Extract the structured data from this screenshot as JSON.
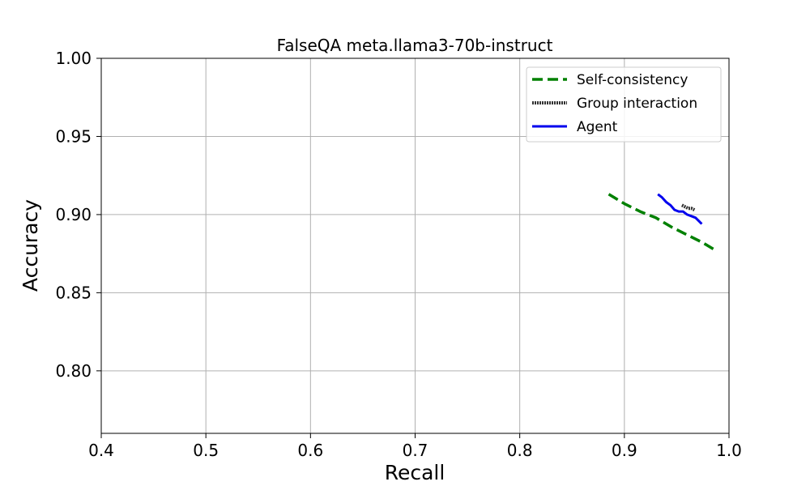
{
  "chart_data": {
    "type": "line",
    "title": "FalseQA meta.llama3-70b-instruct",
    "xlabel": "Recall",
    "ylabel": "Accuracy",
    "xlim": [
      0.4,
      1.0
    ],
    "ylim": [
      0.76,
      1.0
    ],
    "xticks": [
      0.4,
      0.5,
      0.6,
      0.7,
      0.8,
      0.9,
      1.0
    ],
    "xtick_labels": [
      "0.4",
      "0.5",
      "0.6",
      "0.7",
      "0.8",
      "0.9",
      "1.0"
    ],
    "yticks": [
      0.8,
      0.85,
      0.9,
      0.95,
      1.0
    ],
    "ytick_labels": [
      "0.80",
      "0.85",
      "0.90",
      "0.95",
      "1.00"
    ],
    "grid": true,
    "legend_position": "top-right",
    "series": [
      {
        "name": "Self-consistency",
        "color": "#008000",
        "style": "dashed",
        "x": [
          0.885,
          0.9,
          0.915,
          0.93,
          0.945,
          0.96,
          0.975,
          0.985
        ],
        "y": [
          0.913,
          0.907,
          0.902,
          0.898,
          0.892,
          0.887,
          0.882,
          0.878
        ]
      },
      {
        "name": "Group interaction",
        "color": "#333333",
        "style": "dotted-thick",
        "x": [
          0.955,
          0.958,
          0.961,
          0.964,
          0.967
        ],
        "y": [
          0.906,
          0.905,
          0.904,
          0.904,
          0.903
        ]
      },
      {
        "name": "Agent",
        "color": "#0000ee",
        "style": "solid",
        "x": [
          0.932,
          0.936,
          0.94,
          0.944,
          0.948,
          0.952,
          0.956,
          0.96,
          0.964,
          0.968,
          0.971,
          0.974
        ],
        "y": [
          0.913,
          0.911,
          0.908,
          0.906,
          0.903,
          0.902,
          0.902,
          0.9,
          0.899,
          0.898,
          0.896,
          0.894
        ]
      }
    ]
  }
}
